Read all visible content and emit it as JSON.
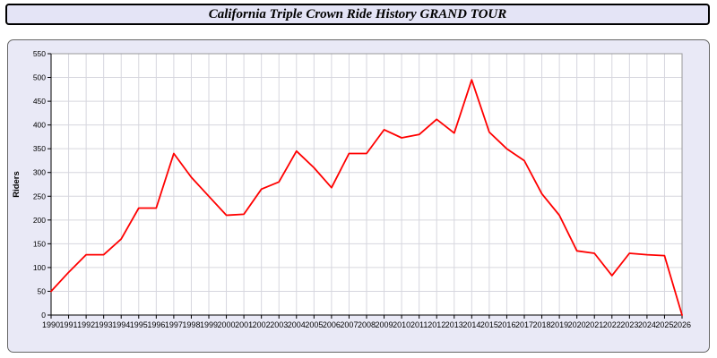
{
  "header": {
    "title": "California Triple Crown Ride History GRAND TOUR"
  },
  "chart_data": {
    "type": "line",
    "title": "California Triple Crown Ride History GRAND TOUR",
    "xlabel": "",
    "ylabel": "Riders",
    "ylim": [
      0,
      550
    ],
    "ytick_step": 50,
    "grid": true,
    "legend_position": "none",
    "line_color": "#ff0000",
    "grid_color": "#d6d6de",
    "plot_bg": "#ffffff",
    "x": [
      1990,
      1991,
      1992,
      1993,
      1994,
      1995,
      1996,
      1997,
      1998,
      1999,
      2000,
      2001,
      2002,
      2003,
      2004,
      2005,
      2006,
      2007,
      2008,
      2009,
      2010,
      2011,
      2012,
      2013,
      2014,
      2015,
      2016,
      2017,
      2018,
      2019,
      2020,
      2021,
      2022,
      2023,
      2024,
      2025,
      2026
    ],
    "values": [
      50,
      90,
      127,
      127,
      160,
      225,
      225,
      340,
      290,
      250,
      210,
      212,
      265,
      280,
      345,
      310,
      268,
      340,
      340,
      390,
      373,
      380,
      412,
      383,
      495,
      385,
      350,
      325,
      255,
      210,
      135,
      130,
      83,
      130,
      127,
      125,
      0
    ]
  }
}
